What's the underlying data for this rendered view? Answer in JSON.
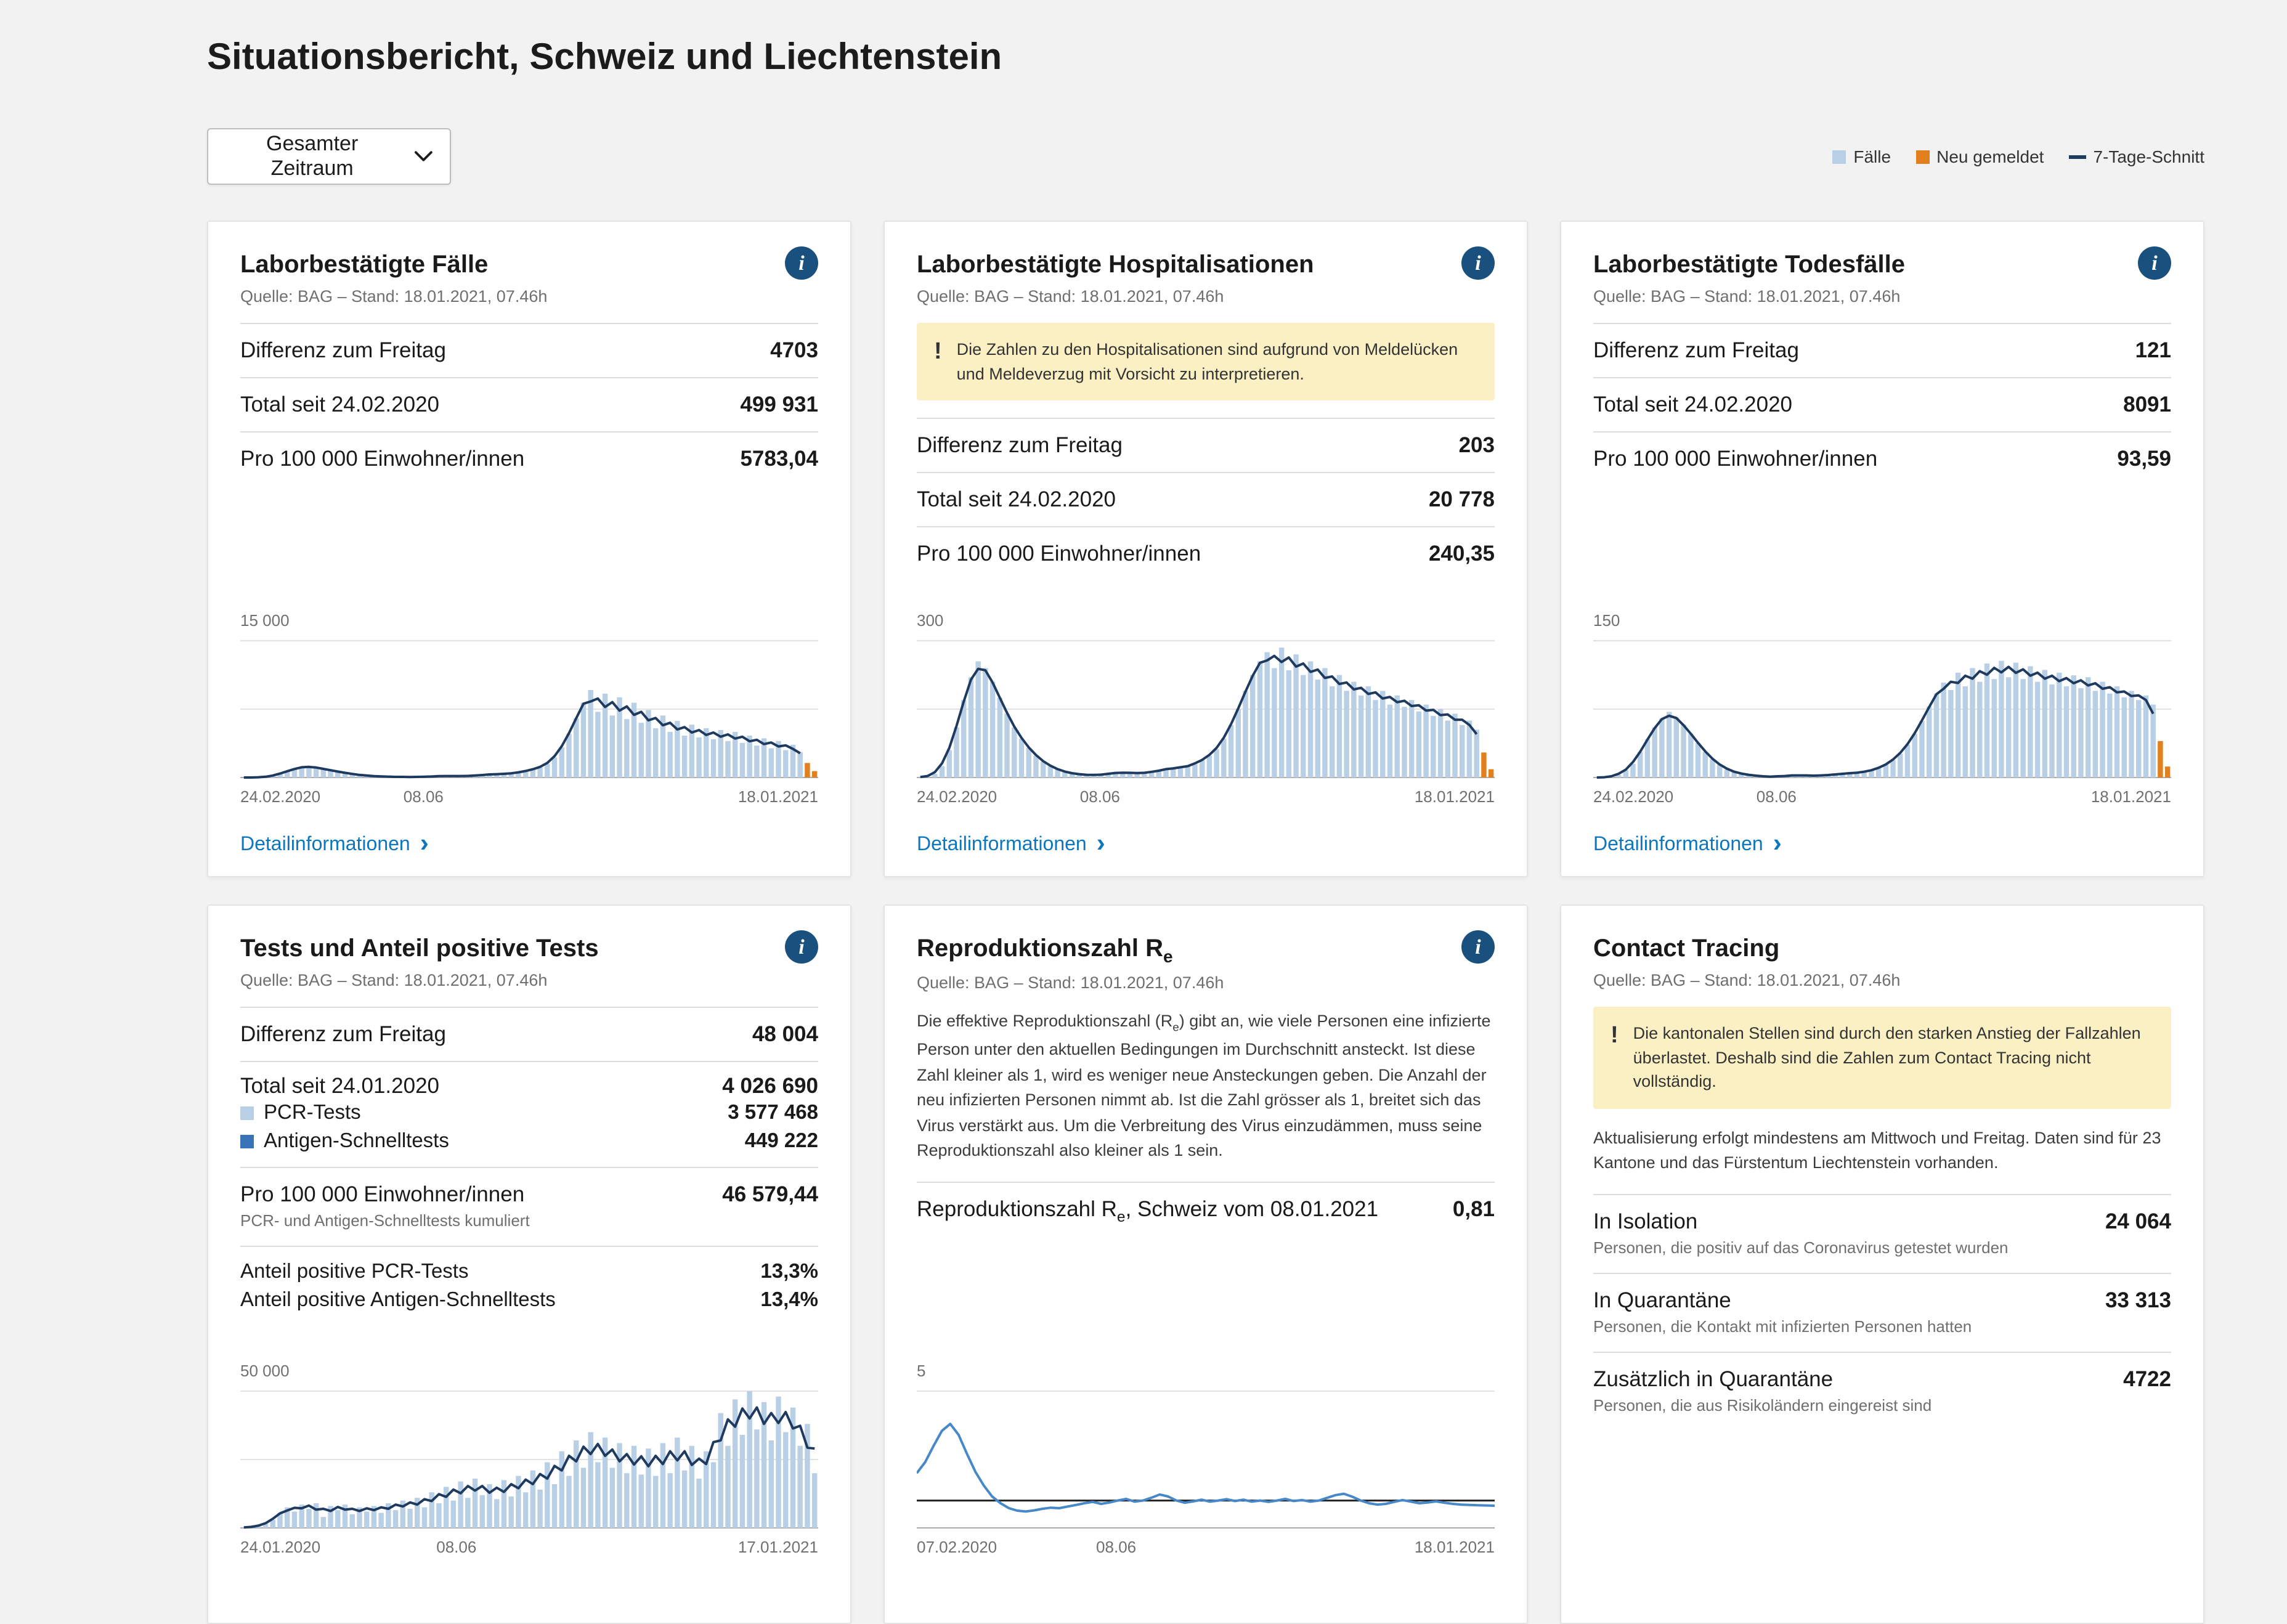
{
  "page": {
    "title": "Situationsbericht, Schweiz und Liechtenstein",
    "time_filter": {
      "label": "Gesamter Zeitraum"
    },
    "legend": [
      {
        "label": "Fälle",
        "color": "#b9cfe6",
        "type": "square"
      },
      {
        "label": "Neu gemeldet",
        "color": "#e2801e",
        "type": "square"
      },
      {
        "label": "7-Tage-Schnitt",
        "color": "#1e3a5f",
        "type": "line"
      }
    ]
  },
  "cards": [
    {
      "title": "Laborbestätigte Fälle",
      "source": "Quelle: BAG – Stand: 18.01.2021, 07.46h",
      "stats": [
        {
          "label": "Differenz zum Freitag",
          "value": "4703"
        },
        {
          "label": "Total seit 24.02.2020",
          "value": "499 931"
        },
        {
          "label": "Pro 100 000 Einwohner/innen",
          "value": "5783,04"
        }
      ],
      "link": "Detailinformationen"
    },
    {
      "title": "Laborbestätigte Hospitalisationen",
      "source": "Quelle: BAG – Stand: 18.01.2021, 07.46h",
      "warning": "Die Zahlen zu den Hospitalisationen sind aufgrund von Meldelücken und Meldeverzug mit Vorsicht zu interpretieren.",
      "stats": [
        {
          "label": "Differenz zum Freitag",
          "value": "203"
        },
        {
          "label": "Total seit 24.02.2020",
          "value": "20 778"
        },
        {
          "label": "Pro 100 000 Einwohner/innen",
          "value": "240,35"
        }
      ],
      "link": "Detailinformationen"
    },
    {
      "title": "Laborbestätigte Todesfälle",
      "source": "Quelle: BAG – Stand: 18.01.2021, 07.46h",
      "stats": [
        {
          "label": "Differenz zum Freitag",
          "value": "121"
        },
        {
          "label": "Total seit 24.02.2020",
          "value": "8091"
        },
        {
          "label": "Pro 100 000 Einwohner/innen",
          "value": "93,59"
        }
      ],
      "link": "Detailinformationen"
    },
    {
      "title": "Tests und Anteil positive Tests",
      "source": "Quelle: BAG – Stand: 18.01.2021, 07.46h",
      "stats_diff": {
        "label": "Differenz zum Freitag",
        "value": "48 004"
      },
      "stats_total": {
        "label": "Total seit 24.01.2020",
        "value": "4 026 690",
        "breakdown": [
          {
            "label": "PCR-Tests",
            "value": "3 577 468",
            "color": "#b9cfe6"
          },
          {
            "label": "Antigen-Schnelltests",
            "value": "449 222",
            "color": "#3a73b8"
          }
        ]
      },
      "stats_per100k": {
        "label": "Pro 100 000 Einwohner/innen",
        "sub": "PCR- und Antigen-Schnelltests kumuliert",
        "value": "46 579,44"
      },
      "stats_share": [
        {
          "label": "Anteil positive PCR-Tests",
          "value": "13,3%"
        },
        {
          "label": "Anteil positive Antigen-Schnelltests",
          "value": "13,4%"
        }
      ]
    },
    {
      "title_main": "Reproduktionszahl R",
      "title_sub": "e",
      "source": "Quelle: BAG – Stand: 18.01.2021, 07.46h",
      "description": {
        "before": "Die effektive Reproduktionszahl (R",
        "sub": "e",
        "after": ") gibt an, wie viele Personen eine infizierte Person unter den aktuellen Bedingungen im Durchschnitt ansteckt. Ist diese Zahl kleiner als 1, wird es weniger neue Ansteckungen geben. Die Anzahl der neu infizierten Personen nimmt ab. Ist die Zahl grösser als 1, breitet sich das Virus verstärkt aus. Um die Verbreitung des Virus einzudämmen, muss seine Reproduktionszahl also kleiner als 1 sein."
      },
      "stat": {
        "label_main": "Reproduktionszahl R",
        "label_sub": "e",
        "label_rest": ", Schweiz vom 08.01.2021",
        "value": "0,81"
      }
    },
    {
      "title": "Contact Tracing",
      "source": "Quelle: BAG – Stand: 18.01.2021, 07.46h",
      "warning": "Die kantonalen Stellen sind durch den starken Anstieg der Fallzahlen überlastet. Deshalb sind die Zahlen zum Contact Tracing nicht vollständig.",
      "note": "Aktualisierung erfolgt mindestens am Mittwoch und Freitag. Daten sind für 23 Kantone und das Fürstentum Liechtenstein vorhanden.",
      "stats": [
        {
          "label": "In Isolation",
          "sub": "Personen, die positiv auf das Coronavirus getestet wurden",
          "value": "24 064"
        },
        {
          "label": "In Quarantäne",
          "sub": "Personen, die Kontakt mit infizierten Personen hatten",
          "value": "33 313"
        },
        {
          "label": "Zusätzlich in Quarantäne",
          "sub": "Personen, die aus Risikoländern eingereist sind",
          "value": "4722"
        }
      ]
    }
  ],
  "chart_data": [
    {
      "type": "bar",
      "title": "Laborbestätigte Fälle pro Tag",
      "series": [
        "Fälle",
        "Neu gemeldet",
        "7-Tage-Schnitt"
      ],
      "ymax": 15000,
      "ylabel": "15 000",
      "xticks": [
        "24.02.2020",
        "08.06",
        "18.01.2021"
      ],
      "mid_pos": 0.317,
      "bar_color": "#b9cfe6",
      "orange_color": "#e2801e",
      "avg_color": "#1e3a5f",
      "orange_tail": 2,
      "values": [
        0,
        5,
        15,
        60,
        180,
        400,
        700,
        950,
        1150,
        1250,
        1100,
        950,
        800,
        650,
        500,
        380,
        280,
        200,
        150,
        110,
        90,
        70,
        60,
        55,
        60,
        80,
        110,
        150,
        180,
        160,
        140,
        170,
        220,
        270,
        330,
        400,
        370,
        450,
        550,
        700,
        900,
        1100,
        1500,
        2200,
        3300,
        4800,
        6500,
        8200,
        9600,
        7200,
        9200,
        6800,
        8800,
        6400,
        8200,
        6000,
        7400,
        5400,
        6800,
        5000,
        6200,
        4600,
        5800,
        4400,
        5400,
        4200,
        5200,
        4000,
        5000,
        3800,
        4600,
        3500,
        4300,
        3200,
        4000,
        3000,
        3600,
        2800,
        1600,
        700
      ]
    },
    {
      "type": "bar",
      "title": "Laborbestätigte Hospitalisationen pro Tag",
      "series": [
        "Fälle",
        "Neu gemeldet",
        "7-Tage-Schnitt"
      ],
      "ymax": 300,
      "ylabel": "300",
      "xticks": [
        "24.02.2020",
        "08.06",
        "18.01.2021"
      ],
      "mid_pos": 0.317,
      "bar_color": "#b9cfe6",
      "orange_color": "#e2801e",
      "avg_color": "#1e3a5f",
      "orange_tail": 2,
      "values": [
        0,
        2,
        8,
        25,
        60,
        110,
        170,
        220,
        255,
        240,
        210,
        175,
        140,
        110,
        85,
        65,
        48,
        35,
        25,
        18,
        12,
        9,
        7,
        6,
        5,
        6,
        8,
        10,
        12,
        10,
        9,
        10,
        12,
        15,
        18,
        22,
        20,
        25,
        30,
        38,
        48,
        62,
        85,
        115,
        150,
        190,
        225,
        255,
        275,
        240,
        285,
        235,
        270,
        225,
        255,
        215,
        240,
        200,
        225,
        190,
        210,
        180,
        200,
        170,
        190,
        160,
        180,
        155,
        170,
        145,
        160,
        135,
        150,
        125,
        140,
        115,
        125,
        105,
        55,
        18
      ]
    },
    {
      "type": "bar",
      "title": "Laborbestätigte Todesfälle pro Tag",
      "series": [
        "Fälle",
        "Neu gemeldet",
        "7-Tage-Schnitt"
      ],
      "ymax": 150,
      "ylabel": "150",
      "xticks": [
        "24.02.2020",
        "08.06",
        "18.01.2021"
      ],
      "mid_pos": 0.317,
      "bar_color": "#b9cfe6",
      "orange_color": "#e2801e",
      "avg_color": "#1e3a5f",
      "orange_tail": 2,
      "values": [
        0,
        0,
        1,
        3,
        8,
        15,
        28,
        42,
        55,
        65,
        72,
        66,
        58,
        48,
        38,
        28,
        20,
        14,
        9,
        6,
        4,
        3,
        2,
        1,
        1,
        1,
        2,
        2,
        3,
        2,
        2,
        2,
        3,
        3,
        4,
        5,
        5,
        6,
        8,
        10,
        14,
        19,
        26,
        36,
        48,
        62,
        78,
        92,
        104,
        96,
        115,
        100,
        120,
        105,
        125,
        108,
        128,
        110,
        126,
        108,
        122,
        105,
        118,
        102,
        115,
        100,
        112,
        98,
        110,
        95,
        105,
        92,
        100,
        88,
        95,
        85,
        90,
        80,
        40,
        12
      ]
    },
    {
      "type": "bar",
      "title": "Tests pro Tag",
      "series": [
        "Tests",
        "7-Tage-Schnitt"
      ],
      "ymax": 50000,
      "ylabel": "50 000",
      "xticks": [
        "24.01.2020",
        "08.06",
        "17.01.2021"
      ],
      "mid_pos": 0.374,
      "bar_color": "#b9cfe6",
      "orange_color": "#e2801e",
      "avg_color": "#1e3a5f",
      "orange_tail": 0,
      "values": [
        100,
        300,
        700,
        1500,
        3000,
        5500,
        7500,
        6000,
        8500,
        7000,
        9000,
        4000,
        8000,
        6500,
        8500,
        5000,
        7500,
        6000,
        8000,
        5500,
        9000,
        6500,
        10000,
        7000,
        11000,
        7500,
        13000,
        9000,
        15000,
        10000,
        17000,
        11000,
        18000,
        12000,
        16000,
        10500,
        17500,
        11500,
        19000,
        13000,
        21000,
        14000,
        24000,
        16000,
        28000,
        19000,
        32000,
        22000,
        35000,
        24000,
        33000,
        22000,
        31000,
        20000,
        30000,
        19500,
        29000,
        19000,
        31000,
        20000,
        33000,
        21000,
        30000,
        18000,
        28000,
        24000,
        42000,
        30000,
        47000,
        34000,
        50000,
        36000,
        46000,
        32000,
        48000,
        35000,
        44000,
        30000,
        38000,
        20000
      ]
    },
    {
      "type": "line",
      "title": "Reproduktionszahl Re, Schweiz",
      "series": [
        "Re"
      ],
      "ymax": 5,
      "ylabel": "5",
      "refline": 1,
      "xticks": [
        "07.02.2020",
        "08.06",
        "18.01.2021"
      ],
      "mid_pos": 0.345,
      "line_color": "#4688c8",
      "values": [
        2.0,
        2.4,
        3.0,
        3.55,
        3.8,
        3.4,
        2.7,
        2.05,
        1.55,
        1.15,
        0.9,
        0.72,
        0.63,
        0.6,
        0.64,
        0.7,
        0.74,
        0.72,
        0.78,
        0.84,
        0.9,
        0.95,
        0.88,
        0.93,
        1.0,
        1.06,
        0.96,
        1.0,
        1.1,
        1.22,
        1.15,
        1.0,
        0.92,
        0.97,
        1.03,
        0.96,
        1.0,
        1.05,
        0.98,
        1.03,
        0.96,
        1.0,
        0.95,
        1.0,
        1.06,
        0.98,
        1.02,
        0.96,
        1.0,
        1.1,
        1.2,
        1.25,
        1.14,
        1.0,
        0.9,
        0.85,
        0.88,
        0.95,
        1.02,
        0.96,
        0.9,
        0.93,
        0.97,
        0.92,
        0.88,
        0.85,
        0.84,
        0.83,
        0.82,
        0.81
      ]
    }
  ]
}
